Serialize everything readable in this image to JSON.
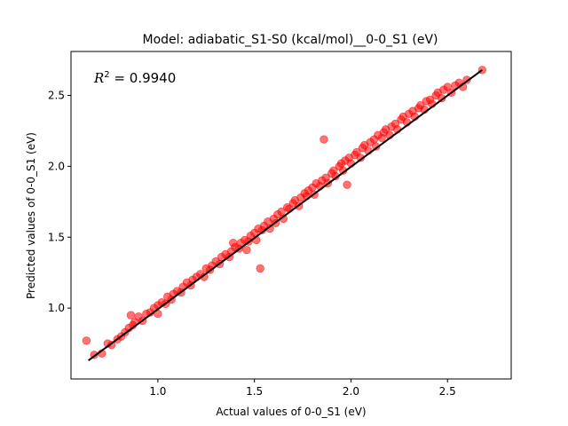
{
  "chart_data": {
    "type": "scatter",
    "title": "Model: adiabatic_S1-S0 (kcal/mol)__0-0_S1 (eV)",
    "xlabel": "Actual values of 0-0_S1 (eV)",
    "ylabel": "Predicted values of 0-0_S1 (eV)",
    "annotation": {
      "symbol": "R",
      "superscript": "2",
      "value_text": " = 0.9940",
      "placement": "top-left"
    },
    "xlim": [
      0.55,
      2.83
    ],
    "ylim": [
      0.5,
      2.81
    ],
    "xticks": [
      1.0,
      1.5,
      2.0,
      2.5
    ],
    "xtick_labels": [
      "1.0",
      "1.5",
      "2.0",
      "2.5"
    ],
    "yticks": [
      1.0,
      1.5,
      2.0,
      2.5
    ],
    "ytick_labels": [
      "1.0",
      "1.5",
      "2.0",
      "2.5"
    ],
    "grid": false,
    "fit_line": {
      "x": [
        0.64,
        2.68
      ],
      "y": [
        0.63,
        2.68
      ],
      "color": "#000000"
    },
    "series": [
      {
        "marker_color": "#ff0000",
        "marker_opacity": 0.55,
        "points": [
          [
            0.63,
            0.77
          ],
          [
            0.67,
            0.67
          ],
          [
            0.71,
            0.68
          ],
          [
            0.74,
            0.75
          ],
          [
            0.76,
            0.74
          ],
          [
            0.79,
            0.78
          ],
          [
            0.81,
            0.8
          ],
          [
            0.83,
            0.83
          ],
          [
            0.85,
            0.86
          ],
          [
            0.86,
            0.95
          ],
          [
            0.87,
            0.88
          ],
          [
            0.88,
            0.9
          ],
          [
            0.9,
            0.94
          ],
          [
            0.92,
            0.91
          ],
          [
            0.94,
            0.96
          ],
          [
            0.96,
            0.97
          ],
          [
            0.98,
            1.0
          ],
          [
            1.0,
            1.02
          ],
          [
            1.0,
            0.96
          ],
          [
            1.02,
            1.04
          ],
          [
            1.04,
            1.03
          ],
          [
            1.05,
            1.08
          ],
          [
            1.07,
            1.06
          ],
          [
            1.08,
            1.1
          ],
          [
            1.1,
            1.12
          ],
          [
            1.12,
            1.11
          ],
          [
            1.13,
            1.15
          ],
          [
            1.15,
            1.18
          ],
          [
            1.17,
            1.16
          ],
          [
            1.18,
            1.2
          ],
          [
            1.2,
            1.22
          ],
          [
            1.22,
            1.24
          ],
          [
            1.24,
            1.22
          ],
          [
            1.25,
            1.28
          ],
          [
            1.27,
            1.27
          ],
          [
            1.28,
            1.3
          ],
          [
            1.3,
            1.33
          ],
          [
            1.32,
            1.31
          ],
          [
            1.33,
            1.36
          ],
          [
            1.35,
            1.38
          ],
          [
            1.37,
            1.36
          ],
          [
            1.38,
            1.4
          ],
          [
            1.39,
            1.46
          ],
          [
            1.4,
            1.43
          ],
          [
            1.42,
            1.42
          ],
          [
            1.43,
            1.46
          ],
          [
            1.45,
            1.48
          ],
          [
            1.46,
            1.41
          ],
          [
            1.47,
            1.47
          ],
          [
            1.48,
            1.51
          ],
          [
            1.5,
            1.53
          ],
          [
            1.51,
            1.48
          ],
          [
            1.52,
            1.56
          ],
          [
            1.53,
            1.28
          ],
          [
            1.54,
            1.55
          ],
          [
            1.55,
            1.58
          ],
          [
            1.57,
            1.61
          ],
          [
            1.58,
            1.56
          ],
          [
            1.6,
            1.63
          ],
          [
            1.61,
            1.6
          ],
          [
            1.62,
            1.66
          ],
          [
            1.64,
            1.68
          ],
          [
            1.65,
            1.63
          ],
          [
            1.67,
            1.71
          ],
          [
            1.68,
            1.7
          ],
          [
            1.7,
            1.74
          ],
          [
            1.71,
            1.76
          ],
          [
            1.73,
            1.72
          ],
          [
            1.74,
            1.78
          ],
          [
            1.76,
            1.81
          ],
          [
            1.77,
            1.79
          ],
          [
            1.78,
            1.83
          ],
          [
            1.8,
            1.85
          ],
          [
            1.81,
            1.8
          ],
          [
            1.82,
            1.88
          ],
          [
            1.84,
            1.86
          ],
          [
            1.85,
            1.9
          ],
          [
            1.86,
            2.19
          ],
          [
            1.87,
            1.92
          ],
          [
            1.88,
            1.88
          ],
          [
            1.9,
            1.95
          ],
          [
            1.91,
            1.97
          ],
          [
            1.92,
            1.93
          ],
          [
            1.94,
            2.0
          ],
          [
            1.95,
            2.02
          ],
          [
            1.96,
            1.97
          ],
          [
            1.97,
            2.04
          ],
          [
            1.98,
            1.87
          ],
          [
            1.99,
            2.06
          ],
          [
            2.0,
            2.02
          ],
          [
            2.02,
            2.08
          ],
          [
            2.03,
            2.1
          ],
          [
            2.05,
            2.06
          ],
          [
            2.06,
            2.13
          ],
          [
            2.07,
            2.15
          ],
          [
            2.09,
            2.11
          ],
          [
            2.1,
            2.17
          ],
          [
            2.12,
            2.19
          ],
          [
            2.13,
            2.14
          ],
          [
            2.14,
            2.22
          ],
          [
            2.16,
            2.2
          ],
          [
            2.17,
            2.24
          ],
          [
            2.18,
            2.26
          ],
          [
            2.2,
            2.22
          ],
          [
            2.21,
            2.28
          ],
          [
            2.23,
            2.3
          ],
          [
            2.24,
            2.26
          ],
          [
            2.26,
            2.33
          ],
          [
            2.27,
            2.35
          ],
          [
            2.29,
            2.31
          ],
          [
            2.3,
            2.37
          ],
          [
            2.32,
            2.39
          ],
          [
            2.33,
            2.35
          ],
          [
            2.35,
            2.41
          ],
          [
            2.36,
            2.43
          ],
          [
            2.38,
            2.4
          ],
          [
            2.39,
            2.46
          ],
          [
            2.41,
            2.47
          ],
          [
            2.42,
            2.44
          ],
          [
            2.44,
            2.5
          ],
          [
            2.45,
            2.52
          ],
          [
            2.47,
            2.48
          ],
          [
            2.48,
            2.54
          ],
          [
            2.5,
            2.56
          ],
          [
            2.52,
            2.52
          ],
          [
            2.54,
            2.57
          ],
          [
            2.56,
            2.59
          ],
          [
            2.58,
            2.56
          ],
          [
            2.6,
            2.61
          ],
          [
            2.68,
            2.68
          ]
        ]
      }
    ]
  }
}
